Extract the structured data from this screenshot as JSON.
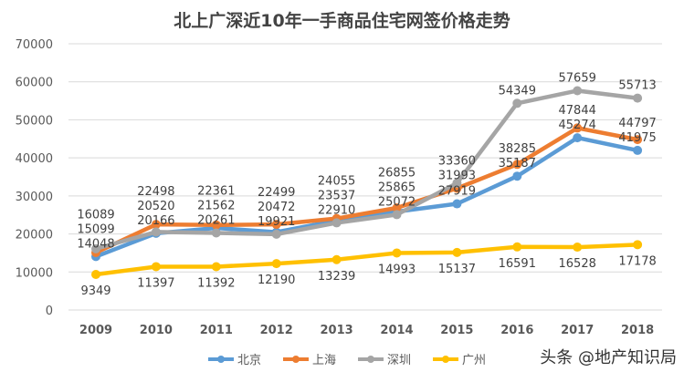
{
  "chart_data": {
    "type": "line",
    "title": "北上广深近10年一手商品住宅网签价格走势",
    "categories": [
      "2009",
      "2010",
      "2011",
      "2012",
      "2013",
      "2014",
      "2015",
      "2016",
      "2017",
      "2018"
    ],
    "ylim": [
      0,
      70000
    ],
    "yticks": [
      0,
      10000,
      20000,
      30000,
      40000,
      50000,
      60000,
      70000
    ],
    "grid": true,
    "legend": "bottom",
    "series": [
      {
        "name": "北京",
        "color": "#5b9bd5",
        "values": [
          14048,
          20166,
          21562,
          20472,
          23537,
          25865,
          27919,
          35187,
          45274,
          41975
        ]
      },
      {
        "name": "上海",
        "color": "#ed7d31",
        "values": [
          15099,
          22498,
          22361,
          22499,
          24055,
          26855,
          31993,
          38285,
          47844,
          44797
        ]
      },
      {
        "name": "深圳",
        "color": "#a5a5a5",
        "values": [
          16089,
          20520,
          20261,
          19921,
          22910,
          25072,
          33360,
          54349,
          57659,
          55713
        ]
      },
      {
        "name": "广州",
        "color": "#ffc000",
        "values": [
          9349,
          11397,
          11392,
          12190,
          13239,
          14993,
          15137,
          16591,
          16528,
          17178
        ]
      }
    ]
  },
  "watermark": "头条 @地产知识局"
}
